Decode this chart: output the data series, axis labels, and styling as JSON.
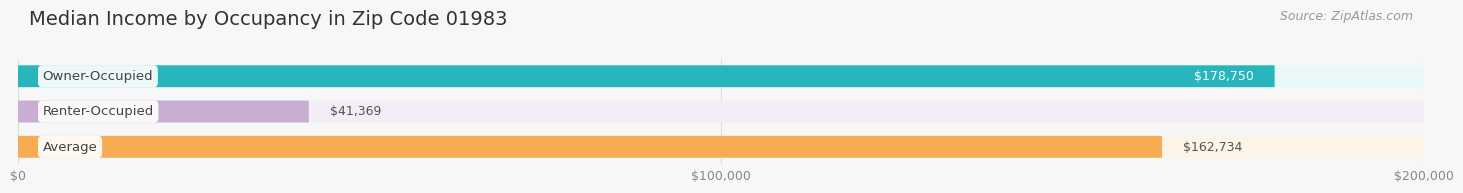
{
  "title": "Median Income by Occupancy in Zip Code 01983",
  "source": "Source: ZipAtlas.com",
  "categories": [
    "Owner-Occupied",
    "Renter-Occupied",
    "Average"
  ],
  "values": [
    178750,
    41369,
    162734
  ],
  "labels": [
    "$178,750",
    "$41,369",
    "$162,734"
  ],
  "bar_colors": [
    "#29b5bc",
    "#c9aed4",
    "#f6ac52"
  ],
  "bar_bg_colors": [
    "#e8f7f8",
    "#f2edf6",
    "#fdf3e6"
  ],
  "xlim": [
    0,
    200000
  ],
  "xticks": [
    0,
    100000,
    200000
  ],
  "xticklabels": [
    "$0",
    "$100,000",
    "$200,000"
  ],
  "title_fontsize": 14,
  "source_fontsize": 9,
  "label_fontsize": 9,
  "cat_fontsize": 9.5,
  "bar_height": 0.62,
  "background_color": "#f7f7f7",
  "grid_color": "#dddddd",
  "value_label_color_inside": "white",
  "value_label_color_outside": "#555555",
  "cat_text_color": "#444444"
}
